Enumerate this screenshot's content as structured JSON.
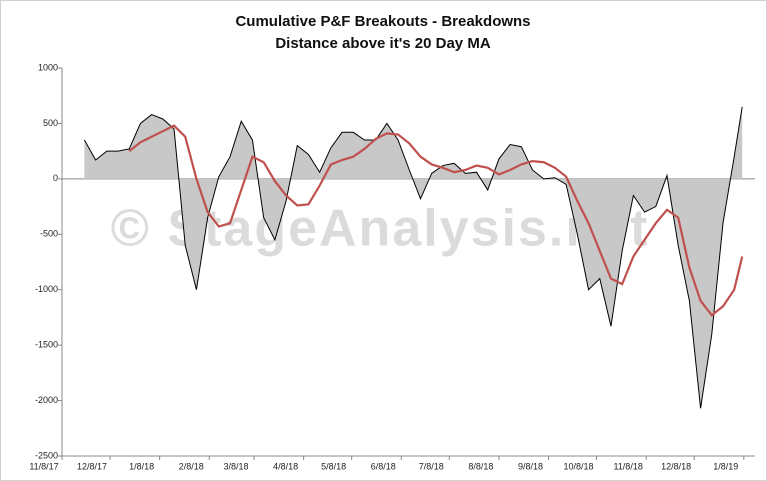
{
  "chart_data": {
    "type": "area-line",
    "title": "Cumulative P&F Breakouts - Breakdowns",
    "subtitle": "Distance above it's 20 Day MA",
    "watermark": "© StageAnalysis.net",
    "x": [
      "11/22/17",
      "11/29/17",
      "12/6/17",
      "12/13/17",
      "12/20/17",
      "12/27/17",
      "1/3/18",
      "1/10/18",
      "1/17/18",
      "1/24/18",
      "1/31/18",
      "2/7/18",
      "2/14/18",
      "2/21/18",
      "2/28/18",
      "3/7/18",
      "3/14/18",
      "3/21/18",
      "3/28/18",
      "4/4/18",
      "4/11/18",
      "4/18/18",
      "4/25/18",
      "5/2/18",
      "5/9/18",
      "5/16/18",
      "5/23/18",
      "5/30/18",
      "6/6/18",
      "6/13/18",
      "6/20/18",
      "6/27/18",
      "7/4/18",
      "7/11/18",
      "7/18/18",
      "7/25/18",
      "8/1/18",
      "8/8/18",
      "8/15/18",
      "8/22/18",
      "8/29/18",
      "9/5/18",
      "9/12/18",
      "9/19/18",
      "9/26/18",
      "10/3/18",
      "10/10/18",
      "10/17/18",
      "10/24/18",
      "10/31/18",
      "11/7/18",
      "11/14/18",
      "11/21/18",
      "11/28/18",
      "12/5/18",
      "12/12/18",
      "12/19/18",
      "12/26/18",
      "1/2/19",
      "1/7/19"
    ],
    "series": [
      {
        "color": "#000000",
        "fill": "#c8c8c8",
        "values": [
          350,
          170,
          250,
          250,
          270,
          500,
          580,
          540,
          450,
          -600,
          -1000,
          -350,
          20,
          200,
          520,
          350,
          -350,
          -550,
          -200,
          300,
          220,
          60,
          280,
          420,
          420,
          350,
          350,
          500,
          350,
          80,
          -180,
          50,
          120,
          140,
          50,
          60,
          -100,
          180,
          310,
          290,
          80,
          0,
          10,
          -50,
          -500,
          -1000,
          -900,
          -1330,
          -650,
          -150,
          -300,
          -250,
          30,
          -600,
          -1100,
          -2070,
          -1400,
          -400,
          200,
          650
        ]
      },
      {
        "color": "#c0504d",
        "values": [
          null,
          null,
          null,
          null,
          250,
          330,
          380,
          430,
          480,
          380,
          0,
          -300,
          -430,
          -400,
          -100,
          200,
          150,
          -20,
          -150,
          -240,
          -230,
          -60,
          130,
          170,
          200,
          270,
          360,
          410,
          400,
          320,
          200,
          130,
          100,
          60,
          80,
          120,
          100,
          40,
          80,
          130,
          160,
          150,
          100,
          20,
          -200,
          -400,
          -650,
          -900,
          -950,
          -700,
          -550,
          -400,
          -280,
          -350,
          -800,
          -1100,
          -1230,
          -1150,
          -1000,
          -700
        ]
      }
    ],
    "xlim": [
      "11/8/17",
      "1/15/19"
    ],
    "xticks": [
      "11/8/17",
      "12/8/17",
      "1/8/18",
      "2/8/18",
      "3/8/18",
      "4/8/18",
      "5/8/18",
      "6/8/18",
      "7/8/18",
      "8/8/18",
      "9/8/18",
      "10/8/18",
      "11/8/18",
      "12/8/18",
      "1/8/19"
    ],
    "ylim": [
      -2500,
      1000
    ],
    "yticks": [
      -2500,
      -2000,
      -1500,
      -1000,
      -500,
      0,
      500,
      1000
    ]
  }
}
